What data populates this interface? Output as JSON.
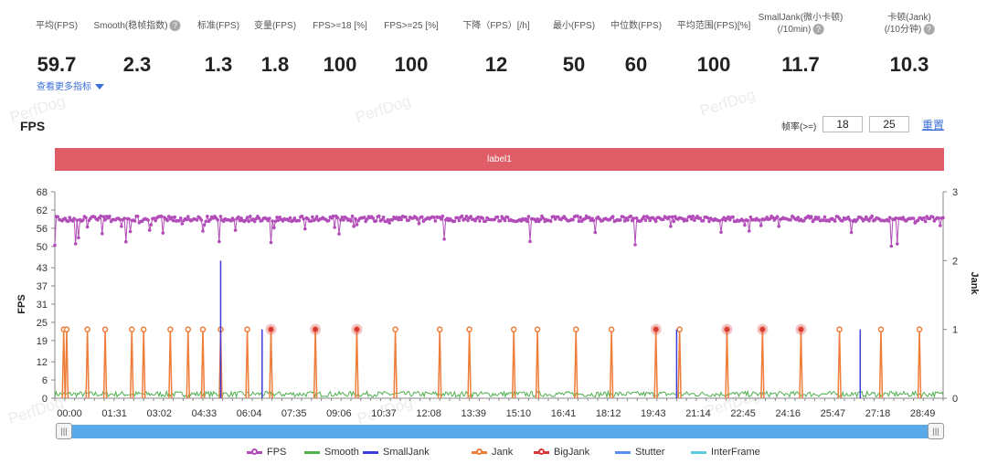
{
  "metrics": [
    {
      "label": "平均(FPS)",
      "value": "59.7"
    },
    {
      "label": "Smooth(稳帧指数)",
      "value": "2.3",
      "help": true
    },
    {
      "label": "标准(FPS)",
      "value": "1.3"
    },
    {
      "label": "变量(FPS)",
      "value": "1.8"
    },
    {
      "label": "FPS>=18 [%]",
      "value": "100"
    },
    {
      "label": "FPS>=25 [%]",
      "value": "100"
    },
    {
      "label": "下降（FPS）[/h]",
      "value": "12"
    },
    {
      "label": "最小(FPS)",
      "value": "50"
    },
    {
      "label": "中位数(FPS)",
      "value": "60"
    },
    {
      "label": "平均范围(FPS)[%]",
      "value": "100"
    },
    {
      "label": "SmallJank(微小卡顿)",
      "label2": "(/10min)",
      "value": "11.7",
      "help": true
    },
    {
      "label": "卡顿(Jank)",
      "label2": "(/10分钟)",
      "value": "10.3",
      "help": true
    }
  ],
  "more_link": "查看更多指标",
  "watermark": "PerfDog",
  "chart_title": "FPS",
  "frame_rate_label": "帧率(>=)",
  "frame_rate_values": [
    "18",
    "25"
  ],
  "reset_label": "重置",
  "band_label": "label1",
  "colors": {
    "fps": "#b14cb8",
    "smooth": "#4fb04f",
    "smalljank": "#3d3ddb",
    "jank": "#ee7d3a",
    "bigjank": "#d9383a",
    "stutter": "#5a8ff0",
    "interframe": "#5ccbe0",
    "band": "#de5d66",
    "slider": "#5aaae9"
  },
  "chart_data": {
    "type": "line",
    "y_left_label": "FPS",
    "y_right_label": "Jank",
    "y_left_ticks": [
      "68",
      "62",
      "56",
      "50",
      "43",
      "37",
      "31",
      "25",
      "19",
      "12",
      "6",
      "0"
    ],
    "y_right_ticks": [
      "3",
      "2",
      "1",
      "0"
    ],
    "x_ticks": [
      "00:00",
      "01:31",
      "03:02",
      "04:33",
      "06:04",
      "07:35",
      "09:06",
      "10:37",
      "12:08",
      "13:39",
      "15:10",
      "16:41",
      "18:12",
      "19:43",
      "21:14",
      "22:45",
      "24:16",
      "25:47",
      "27:18",
      "28:49"
    ],
    "duration_min": 30,
    "fps_typical": 60,
    "fps_min": 50,
    "jank_times_min": [
      0.3,
      0.4,
      1.1,
      1.7,
      2.6,
      3.0,
      3.9,
      4.5,
      5.0,
      5.6,
      6.5,
      7.3,
      8.8,
      10.2,
      11.5,
      13.0,
      14.0,
      15.5,
      16.3,
      17.6,
      18.8,
      20.3,
      21.1,
      22.7,
      23.9,
      25.2,
      26.5,
      27.9,
      29.2
    ],
    "bigjank_times_min": [
      7.3,
      8.8,
      10.2,
      20.3,
      22.7,
      23.9,
      25.2
    ],
    "smalljank_spikes": [
      {
        "t": 5.6,
        "v": 2.0
      },
      {
        "t": 7.0,
        "v": 1.0
      },
      {
        "t": 21.0,
        "v": 1.0
      },
      {
        "t": 27.2,
        "v": 1.0
      }
    ],
    "legend": [
      "FPS",
      "Smooth",
      "SmallJank",
      "Jank",
      "BigJank",
      "Stutter",
      "InterFrame"
    ]
  }
}
